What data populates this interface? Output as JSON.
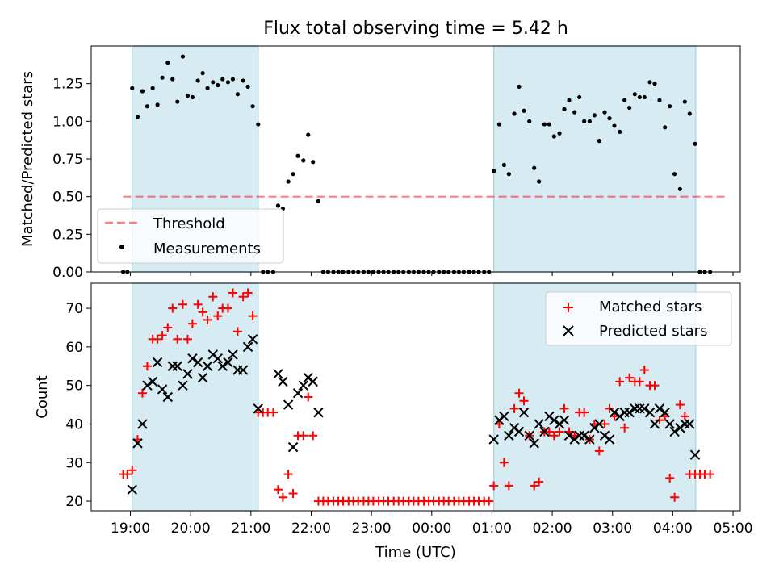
{
  "chart_data": {
    "title": "Flux total observing time = 5.42 h",
    "xlabel": "Time (UTC)",
    "xticks": [
      {
        "h": 19,
        "label": "19:00"
      },
      {
        "h": 20,
        "label": "20:00"
      },
      {
        "h": 21,
        "label": "21:00"
      },
      {
        "h": 22,
        "label": "22:00"
      },
      {
        "h": 23,
        "label": "23:00"
      },
      {
        "h": 24,
        "label": "00:00"
      },
      {
        "h": 25,
        "label": "01:00"
      },
      {
        "h": 26,
        "label": "02:00"
      },
      {
        "h": 27,
        "label": "03:00"
      },
      {
        "h": 28,
        "label": "04:00"
      },
      {
        "h": 29,
        "label": "05:00"
      }
    ],
    "xlim": [
      18.35,
      29.12
    ],
    "shaded_intervals": [
      [
        19.03,
        21.12
      ],
      [
        25.03,
        28.38
      ]
    ],
    "colors": {
      "shade": "#add8e6",
      "threshold": "#ff0000",
      "measure": "#000000",
      "matched": "#ff0000",
      "predicted": "#000000"
    },
    "top": {
      "type": "scatter",
      "ylabel": "Matched/Predicted stars",
      "ylim": [
        0,
        1.5
      ],
      "yticks": [
        "0.00",
        "0.25",
        "0.50",
        "0.75",
        "1.00",
        "1.25"
      ],
      "threshold": {
        "label": "Threshold",
        "value": 0.5,
        "x_range": [
          18.88,
          28.88
        ]
      },
      "measurements_label": "Measurements",
      "x": [
        18.88,
        18.95,
        19.03,
        19.12,
        19.2,
        19.28,
        19.37,
        19.45,
        19.53,
        19.62,
        19.7,
        19.78,
        19.87,
        19.95,
        20.03,
        20.12,
        20.2,
        20.28,
        20.37,
        20.45,
        20.53,
        20.62,
        20.7,
        20.78,
        20.87,
        20.95,
        21.03,
        21.12,
        21.2,
        21.28,
        21.37,
        21.45,
        21.53,
        21.62,
        21.7,
        21.78,
        21.87,
        21.95,
        22.03,
        22.12,
        22.2,
        22.28,
        22.37,
        22.45,
        22.53,
        22.62,
        22.7,
        22.78,
        22.87,
        22.95,
        23.03,
        23.12,
        23.2,
        23.28,
        23.37,
        23.45,
        23.53,
        23.62,
        23.7,
        23.78,
        23.87,
        23.95,
        24.03,
        24.12,
        24.2,
        24.28,
        24.37,
        24.45,
        24.53,
        24.62,
        24.7,
        24.78,
        24.87,
        24.95,
        25.03,
        25.12,
        25.2,
        25.28,
        25.37,
        25.45,
        25.53,
        25.62,
        25.7,
        25.78,
        25.87,
        25.95,
        26.03,
        26.12,
        26.2,
        26.28,
        26.37,
        26.45,
        26.53,
        26.62,
        26.7,
        26.78,
        26.87,
        26.95,
        27.03,
        27.12,
        27.2,
        27.28,
        27.37,
        27.45,
        27.53,
        27.62,
        27.7,
        27.78,
        27.87,
        27.95,
        28.03,
        28.12,
        28.2,
        28.28,
        28.37,
        28.45,
        28.53,
        28.62
      ],
      "y": [
        0.0,
        0.0,
        1.22,
        1.03,
        1.2,
        1.1,
        1.22,
        1.11,
        1.29,
        1.39,
        1.28,
        1.13,
        1.43,
        1.17,
        1.16,
        1.27,
        1.32,
        1.22,
        1.26,
        1.24,
        1.28,
        1.26,
        1.28,
        1.18,
        1.27,
        1.23,
        1.1,
        0.98,
        0.0,
        0.0,
        0.0,
        0.44,
        0.42,
        0.6,
        0.65,
        0.77,
        0.74,
        0.91,
        0.73,
        0.47,
        0.0,
        0.0,
        0.0,
        0.0,
        0.0,
        0.0,
        0.0,
        0.0,
        0.0,
        0.0,
        0.0,
        0.0,
        0.0,
        0.0,
        0.0,
        0.0,
        0.0,
        0.0,
        0.0,
        0.0,
        0.0,
        0.0,
        0.0,
        0.0,
        0.0,
        0.0,
        0.0,
        0.0,
        0.0,
        0.0,
        0.0,
        0.0,
        0.0,
        0.0,
        0.67,
        0.98,
        0.71,
        0.65,
        1.05,
        1.23,
        1.07,
        1.0,
        0.69,
        0.6,
        0.98,
        0.98,
        0.9,
        0.92,
        1.08,
        1.14,
        1.06,
        1.16,
        1.0,
        1.0,
        1.04,
        0.87,
        1.06,
        1.02,
        0.97,
        0.93,
        1.14,
        1.09,
        1.18,
        1.16,
        1.16,
        1.26,
        1.25,
        1.14,
        0.96,
        1.1,
        0.65,
        0.55,
        1.13,
        1.05,
        0.85,
        0.0,
        0.0,
        0.0
      ]
    },
    "bottom": {
      "type": "scatter",
      "ylabel": "Count",
      "ylim": [
        17.5,
        76.5
      ],
      "yticks": [
        20,
        30,
        40,
        50,
        60,
        70
      ],
      "series": [
        {
          "name": "Matched stars",
          "marker": "plus",
          "x": [
            18.88,
            18.95,
            19.03,
            19.12,
            19.2,
            19.28,
            19.37,
            19.45,
            19.53,
            19.62,
            19.7,
            19.78,
            19.87,
            19.95,
            20.03,
            20.12,
            20.2,
            20.28,
            20.37,
            20.45,
            20.53,
            20.62,
            20.7,
            20.78,
            20.87,
            20.95,
            21.03,
            21.12,
            21.2,
            21.28,
            21.37,
            21.45,
            21.53,
            21.62,
            21.7,
            21.78,
            21.87,
            21.95,
            22.03,
            22.12,
            22.2,
            22.28,
            22.37,
            22.45,
            22.53,
            22.62,
            22.7,
            22.78,
            22.87,
            22.95,
            23.03,
            23.12,
            23.2,
            23.28,
            23.37,
            23.45,
            23.53,
            23.62,
            23.7,
            23.78,
            23.87,
            23.95,
            24.03,
            24.12,
            24.2,
            24.28,
            24.37,
            24.45,
            24.53,
            24.62,
            24.7,
            24.78,
            24.87,
            24.95,
            25.03,
            25.12,
            25.2,
            25.28,
            25.37,
            25.45,
            25.53,
            25.62,
            25.7,
            25.78,
            25.87,
            25.95,
            26.03,
            26.12,
            26.2,
            26.28,
            26.37,
            26.45,
            26.53,
            26.62,
            26.7,
            26.78,
            26.87,
            26.95,
            27.03,
            27.12,
            27.2,
            27.28,
            27.37,
            27.45,
            27.53,
            27.62,
            27.7,
            27.78,
            27.87,
            27.95,
            28.03,
            28.12,
            28.2,
            28.28,
            28.37,
            28.45,
            28.53,
            28.62
          ],
          "y": [
            27,
            27,
            28,
            36,
            48,
            55,
            62,
            62,
            63,
            65,
            70,
            62,
            71,
            62,
            66,
            71,
            69,
            67,
            73,
            68,
            70,
            70,
            74,
            64,
            73,
            74,
            68,
            43,
            43,
            43,
            43,
            23,
            21,
            27,
            22,
            37,
            37,
            47,
            37,
            20,
            20,
            20,
            20,
            20,
            20,
            20,
            20,
            20,
            20,
            20,
            20,
            20,
            20,
            20,
            20,
            20,
            20,
            20,
            20,
            20,
            20,
            20,
            20,
            20,
            20,
            20,
            20,
            20,
            20,
            20,
            20,
            20,
            20,
            20,
            24,
            40,
            30,
            24,
            44,
            48,
            46,
            37,
            24,
            25,
            38,
            38,
            37,
            38,
            44,
            38,
            37,
            43,
            43,
            36,
            40,
            33,
            40,
            44,
            42,
            51,
            39,
            52,
            51,
            51,
            54,
            50,
            50,
            41,
            42,
            26,
            21,
            45,
            42,
            27,
            27,
            27,
            27,
            27
          ]
        },
        {
          "name": "Predicted stars",
          "marker": "x",
          "x": [
            19.03,
            19.12,
            19.2,
            19.28,
            19.37,
            19.45,
            19.53,
            19.62,
            19.7,
            19.78,
            19.87,
            19.95,
            20.03,
            20.12,
            20.2,
            20.28,
            20.37,
            20.45,
            20.53,
            20.62,
            20.7,
            20.78,
            20.87,
            20.95,
            21.03,
            21.12,
            21.45,
            21.53,
            21.62,
            21.7,
            21.78,
            21.87,
            21.95,
            22.03,
            22.12,
            25.03,
            25.12,
            25.2,
            25.28,
            25.37,
            25.45,
            25.53,
            25.62,
            25.7,
            25.78,
            25.87,
            25.95,
            26.03,
            26.12,
            26.2,
            26.28,
            26.37,
            26.45,
            26.53,
            26.62,
            26.7,
            26.78,
            26.87,
            26.95,
            27.03,
            27.12,
            27.2,
            27.28,
            27.37,
            27.45,
            27.53,
            27.62,
            27.7,
            27.78,
            27.87,
            27.95,
            28.03,
            28.12,
            28.2,
            28.28,
            28.37
          ],
          "y": [
            23,
            35,
            40,
            50,
            51,
            56,
            49,
            47,
            55,
            55,
            50,
            53,
            57,
            56,
            52,
            55,
            58,
            57,
            55,
            56,
            58,
            54,
            54,
            60,
            62,
            44,
            53,
            51,
            45,
            34,
            48,
            50,
            52,
            51,
            43,
            36,
            41,
            42,
            37,
            39,
            38,
            43,
            37,
            35,
            40,
            38,
            42,
            41,
            40,
            41,
            37,
            36,
            37,
            37,
            36,
            39,
            40,
            37,
            36,
            43,
            42,
            43,
            43,
            44,
            44,
            44,
            43,
            40,
            44,
            43,
            40,
            38,
            39,
            40,
            40,
            32
          ]
        }
      ]
    }
  }
}
